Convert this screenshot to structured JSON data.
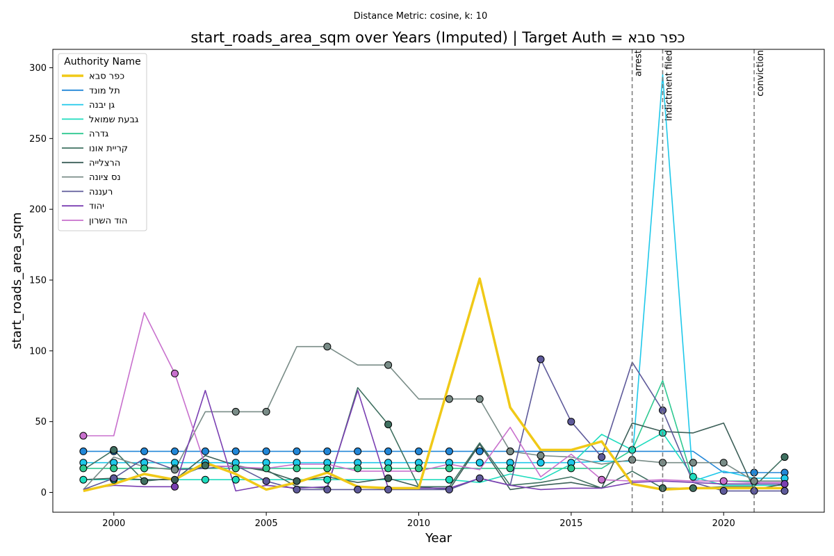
{
  "chart_data": {
    "type": "line",
    "suptitle": "Distance Metric: cosine, k: 10",
    "title": "start_roads_area_sqm over Years (Imputed) | Target Auth = כפר סבא",
    "xlabel": "Year",
    "ylabel": "start_roads_area_sqm",
    "xlim": [
      1998,
      2023.3
    ],
    "ylim": [
      -14,
      313
    ],
    "xticks": [
      2000,
      2005,
      2010,
      2015,
      2020
    ],
    "yticks": [
      0,
      50,
      100,
      150,
      200,
      250,
      300
    ],
    "grid": false,
    "legend": {
      "title": "Authority Name",
      "placement": "top-left"
    },
    "events": [
      {
        "year": 2017,
        "label": "arrest"
      },
      {
        "year": 2018,
        "label": "indictment filed"
      },
      {
        "year": 2021,
        "label": "conviction"
      }
    ],
    "x": [
      1999,
      2000,
      2001,
      2002,
      2003,
      2004,
      2005,
      2006,
      2007,
      2008,
      2009,
      2010,
      2011,
      2012,
      2013,
      2014,
      2015,
      2016,
      2017,
      2018,
      2019,
      2020,
      2021,
      2022
    ],
    "series": [
      {
        "name": "כפר סבא",
        "color": "#f0c917",
        "width": 3.5,
        "target": true,
        "values": [
          1,
          6,
          13,
          9,
          21,
          13,
          2,
          7,
          14,
          4,
          3,
          3,
          77,
          151,
          60,
          30,
          30,
          36,
          6,
          2,
          3,
          3,
          3,
          3
        ],
        "markers": []
      },
      {
        "name": "תל מונד",
        "color": "#2287d8",
        "width": 1.6,
        "values": [
          29,
          29,
          29,
          29,
          29,
          29,
          29,
          29,
          29,
          29,
          29,
          29,
          29,
          29,
          29,
          29,
          29,
          29,
          29,
          29,
          29,
          14,
          14,
          14
        ],
        "markers": [
          1999,
          2000,
          2001,
          2002,
          2003,
          2004,
          2005,
          2006,
          2007,
          2008,
          2009,
          2010,
          2011,
          2012,
          2013,
          2021,
          2022
        ]
      },
      {
        "name": "גן יבנה",
        "color": "#1ec8ea",
        "width": 1.6,
        "values": [
          21,
          21,
          21,
          21,
          21,
          21,
          21,
          21,
          21,
          21,
          21,
          21,
          21,
          21,
          21,
          21,
          21,
          22,
          22,
          295,
          8,
          15,
          10,
          10
        ],
        "markers": [
          1999,
          2000,
          2001,
          2002,
          2003,
          2004,
          2005,
          2006,
          2007,
          2008,
          2009,
          2010,
          2011,
          2012,
          2013,
          2014,
          2015,
          2022
        ]
      },
      {
        "name": "גבעת שמואל",
        "color": "#1edcbe",
        "width": 1.6,
        "values": [
          9,
          9,
          9,
          9,
          9,
          9,
          9,
          9,
          9,
          9,
          9,
          9,
          9,
          7,
          13,
          9,
          20,
          41,
          30,
          42,
          11,
          5,
          5,
          5
        ],
        "markers": [
          1999,
          2000,
          2003,
          2004,
          2007,
          2011,
          2017,
          2018,
          2019
        ]
      },
      {
        "name": "גדרה",
        "color": "#2ec991",
        "width": 1.6,
        "values": [
          17,
          17,
          17,
          17,
          17,
          17,
          17,
          17,
          17,
          17,
          17,
          17,
          17,
          17,
          17,
          17,
          17,
          17,
          30,
          79,
          8,
          8,
          8,
          8
        ],
        "markers": [
          1999,
          2000,
          2001,
          2002,
          2004,
          2005,
          2006,
          2007,
          2008,
          2009,
          2010,
          2011,
          2013,
          2015
        ]
      },
      {
        "name": "קריית אונו",
        "color": "#3f7060",
        "width": 1.6,
        "values": [
          16,
          30,
          8,
          10,
          19,
          18,
          16,
          4,
          3,
          74,
          48,
          4,
          4,
          35,
          5,
          7,
          11,
          3,
          15,
          3,
          3,
          4,
          4,
          25
        ],
        "markers": [
          2000,
          2001,
          2003,
          2009,
          2018,
          2019,
          2022
        ]
      },
      {
        "name": "הרצלייה",
        "color": "#3c5f58",
        "width": 1.6,
        "values": [
          9,
          10,
          9,
          9,
          26,
          19,
          15,
          8,
          11,
          7,
          10,
          4,
          2,
          34,
          2,
          5,
          7,
          3,
          49,
          43,
          42,
          49,
          2,
          6
        ],
        "markers": [
          2000,
          2002,
          2006,
          2009
        ]
      },
      {
        "name": "נס ציונה",
        "color": "#798c87",
        "width": 1.6,
        "values": [
          2,
          25,
          18,
          16,
          57,
          57,
          57,
          103,
          103,
          90,
          90,
          66,
          66,
          66,
          29,
          26,
          25,
          20,
          23,
          21,
          21,
          21,
          8,
          8
        ],
        "markers": [
          2002,
          2004,
          2005,
          2007,
          2009,
          2011,
          2012,
          2013,
          2014,
          2017,
          2018,
          2019,
          2020,
          2021
        ]
      },
      {
        "name": "רעננה",
        "color": "#5e5a9a",
        "width": 1.6,
        "values": [
          2,
          10,
          24,
          16,
          17,
          19,
          8,
          2,
          2,
          2,
          2,
          2,
          2,
          10,
          5,
          94,
          50,
          25,
          92,
          58,
          7,
          1,
          1,
          1
        ],
        "markers": [
          2000,
          2005,
          2006,
          2007,
          2008,
          2009,
          2011,
          2012,
          2014,
          2015,
          2016,
          2018,
          2020,
          2021,
          2022
        ]
      },
      {
        "name": "יהוד",
        "color": "#7a3fb2",
        "width": 1.6,
        "values": [
          2,
          5,
          4,
          4,
          72,
          1,
          5,
          3,
          4,
          72,
          3,
          3,
          3,
          10,
          5,
          2,
          3,
          3,
          7,
          8,
          7,
          6,
          6,
          6
        ],
        "markers": [
          2002,
          2022
        ]
      },
      {
        "name": "הוד השרון",
        "color": "#c870cd",
        "width": 1.6,
        "values": [
          40,
          40,
          127,
          84,
          19,
          18,
          17,
          20,
          20,
          15,
          15,
          15,
          20,
          16,
          46,
          11,
          27,
          9,
          8,
          9,
          8,
          8,
          7,
          7
        ],
        "markers": [
          1999,
          2002,
          2016,
          2020
        ]
      }
    ]
  }
}
